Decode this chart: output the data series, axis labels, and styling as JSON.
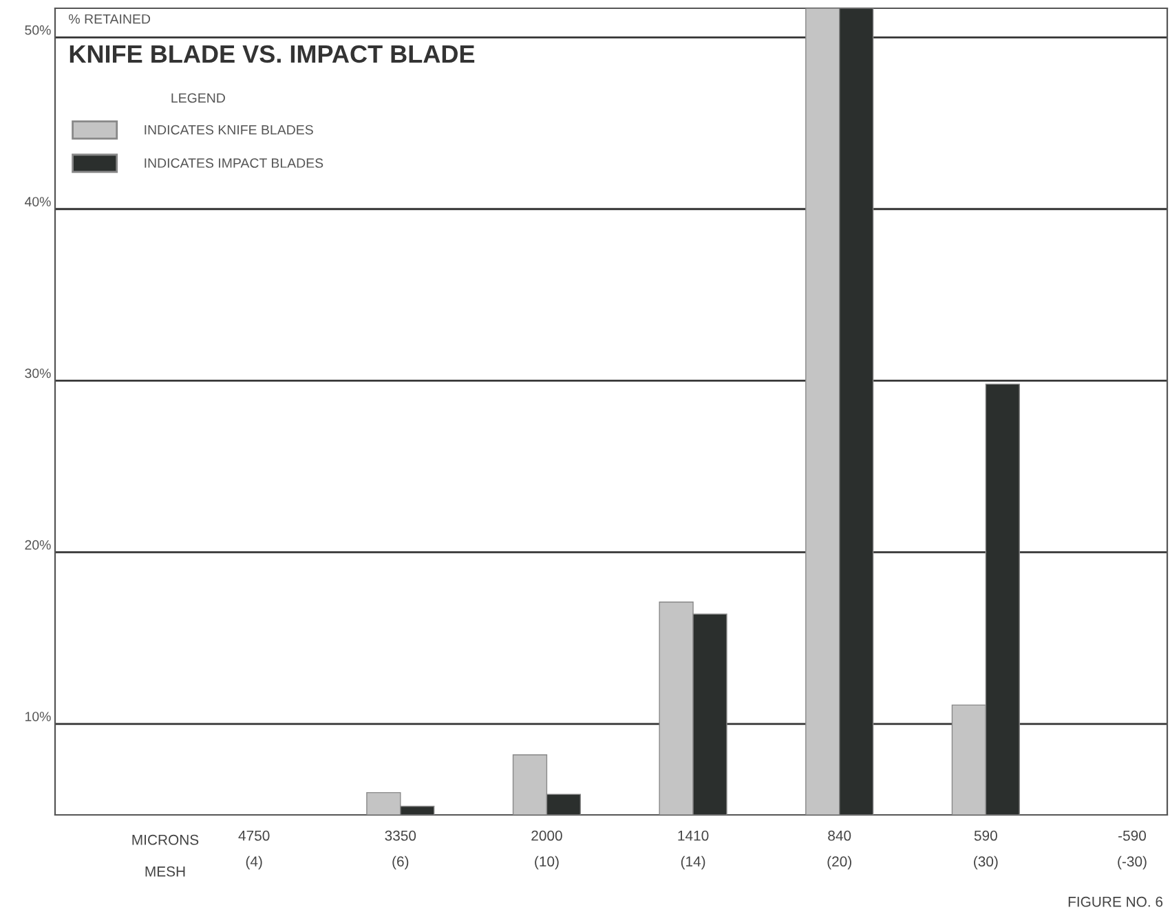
{
  "chart_data": {
    "type": "bar",
    "title": "KNIFE BLADE VS. IMPACT BLADE",
    "ylabel": "% RETAINED",
    "categories": [
      "4750\n(4)",
      "3350\n(6)",
      "2000\n(10)",
      "1410\n(14)",
      "840\n(20)",
      "590\n(30)",
      "-590\n(-30)"
    ],
    "series": [
      {
        "name": "INDICATES KNIFE BLADES",
        "color": "#c4c4c4",
        "values": [
          null,
          6.0,
          8.2,
          17.1,
          51.7,
          11.1,
          null
        ]
      },
      {
        "name": "INDICATES IMPACT BLADES",
        "color": "#2b2f2d",
        "values": [
          null,
          5.2,
          5.9,
          16.4,
          51.7,
          29.8,
          null
        ]
      }
    ],
    "legend_title": "LEGEND",
    "legend": "top left",
    "ylim": [
      4.7,
      51.7
    ],
    "yticks": [
      {
        "value": 10,
        "label": "10%"
      },
      {
        "value": 20,
        "label": "20%"
      },
      {
        "value": 30,
        "label": "30%"
      },
      {
        "value": 40,
        "label": "40%"
      },
      {
        "value": 50,
        "label": "50%"
      }
    ],
    "grid": "y",
    "annotations": [
      "MICRONS",
      "MESH",
      "FIGURE NO. 6"
    ]
  }
}
